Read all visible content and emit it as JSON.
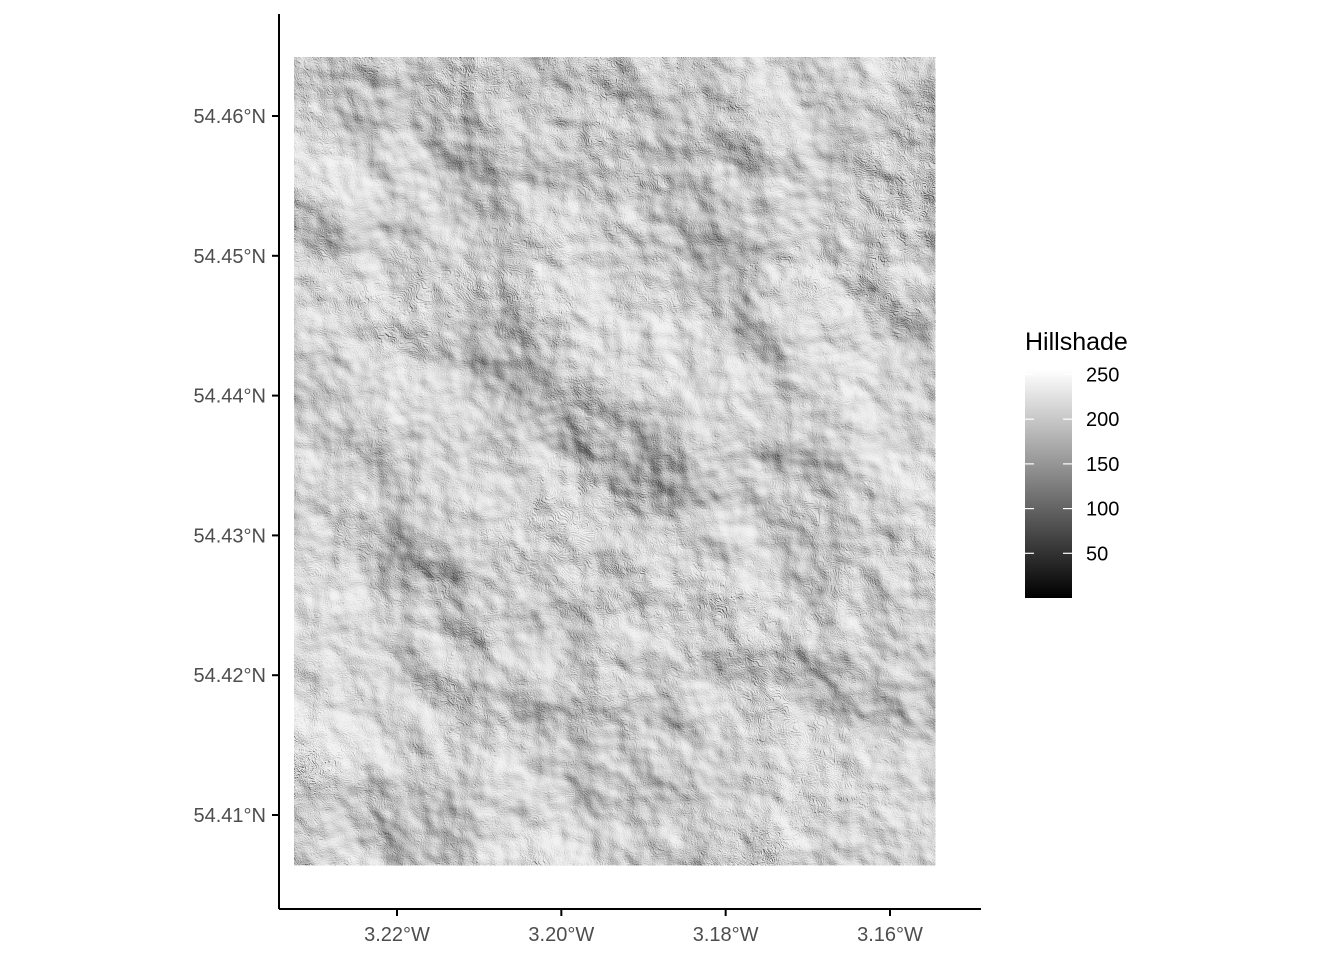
{
  "map": {
    "type": "raster",
    "fill": "hillshade",
    "colors": {
      "axis": "#000000",
      "tick_label": "#4d4d4d",
      "ramp_low": "#000000",
      "ramp_high": "#ffffff"
    },
    "x_axis": {
      "ticks": [
        -3.22,
        -3.2,
        -3.18,
        -3.16
      ],
      "tick_labels": [
        "3.22°W",
        "3.20°W",
        "3.18°W",
        "3.16°W"
      ],
      "range": [
        -3.2325,
        -3.1545
      ]
    },
    "y_axis": {
      "ticks": [
        54.46,
        54.45,
        54.44,
        54.43,
        54.42,
        54.41
      ],
      "tick_labels": [
        "54.46°N",
        "54.45°N",
        "54.44°N",
        "54.43°N",
        "54.42°N",
        "54.41°N"
      ],
      "range": [
        54.4064,
        54.4642
      ]
    },
    "legend": {
      "title": "Hillshade",
      "placement": "right",
      "breaks": [
        250,
        200,
        150,
        100,
        50
      ],
      "labels": [
        "250",
        "200",
        "150",
        "100",
        "50"
      ],
      "limits": [
        0,
        255
      ]
    }
  }
}
